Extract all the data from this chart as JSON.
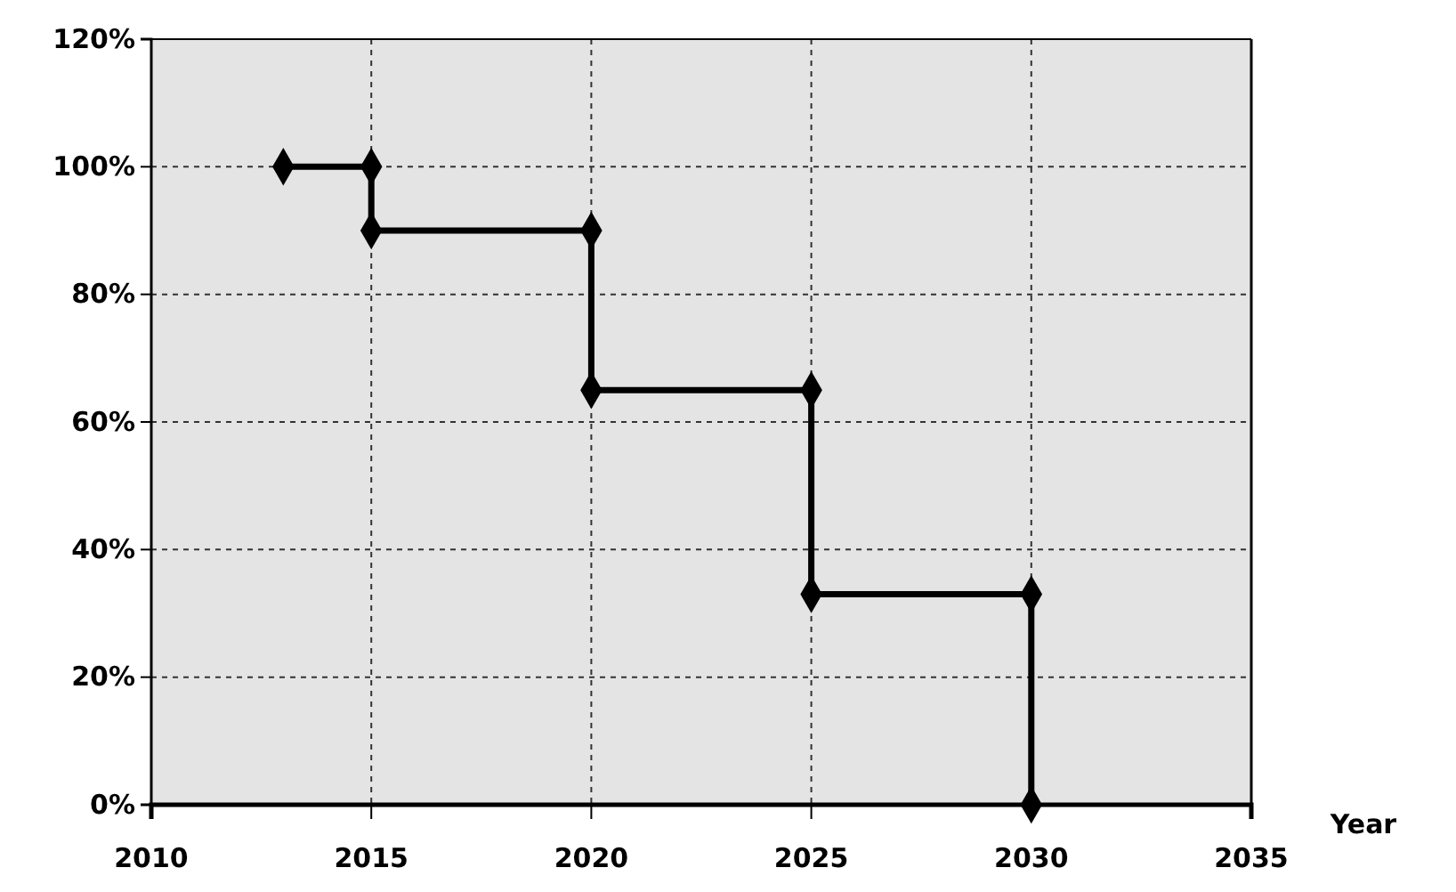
{
  "chart_data": {
    "type": "line",
    "xlabel": "Year",
    "x": [
      2013,
      2015,
      2015,
      2020,
      2020,
      2025,
      2025,
      2030,
      2030
    ],
    "series": [
      {
        "color": "#000000",
        "values": [
          100,
          100,
          90,
          90,
          65,
          65,
          33,
          33,
          0
        ]
      }
    ],
    "xlim": [
      2010,
      2035
    ],
    "xticks": [
      2010,
      2015,
      2020,
      2025,
      2030,
      2035
    ],
    "ylim": [
      0,
      120
    ],
    "yticks": [
      {
        "value": 0,
        "label": "0%"
      },
      {
        "value": 20,
        "label": "20%"
      },
      {
        "value": 40,
        "label": "40%"
      },
      {
        "value": 60,
        "label": "60%"
      },
      {
        "value": 80,
        "label": "80%"
      },
      {
        "value": 100,
        "label": "100%"
      },
      {
        "value": 120,
        "label": "120%"
      }
    ],
    "grid": true,
    "marker": "diamond",
    "line_style": "solid"
  }
}
